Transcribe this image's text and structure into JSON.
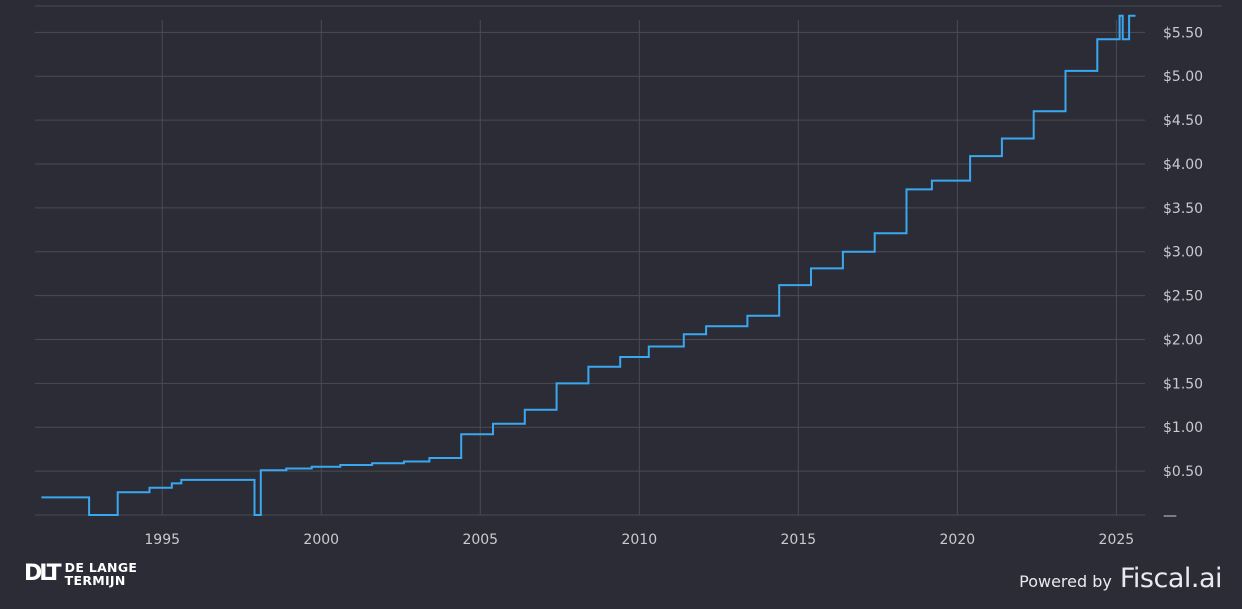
{
  "chart_data": {
    "type": "line",
    "step": true,
    "title": "",
    "xlabel": "",
    "ylabel": "",
    "xlim": [
      1991.0,
      2025.9
    ],
    "ylim": [
      0,
      5.8
    ],
    "x_ticks": [
      1995,
      2000,
      2005,
      2010,
      2015,
      2020,
      2025
    ],
    "x_tick_labels": [
      "1995",
      "2000",
      "2005",
      "2010",
      "2015",
      "2020",
      "2025"
    ],
    "y_ticks": [
      0,
      0.5,
      1.0,
      1.5,
      2.0,
      2.5,
      3.0,
      3.5,
      4.0,
      4.5,
      5.0,
      5.5
    ],
    "y_tick_labels": [
      "—",
      "$0.50",
      "$1.00",
      "$1.50",
      "$2.00",
      "$2.50",
      "$3.00",
      "$3.50",
      "$4.00",
      "$4.50",
      "$5.00",
      "$5.50"
    ],
    "y_axis_position": "right",
    "grid": true,
    "series_color": "#3aa8f0",
    "series": [
      {
        "x": [
          1991.2,
          1992.7,
          1993.6,
          1994.6,
          1995.3,
          1995.6,
          1997.9,
          1998.1,
          1998.9,
          1999.7,
          2000.6,
          2001.6,
          2002.6,
          2003.4,
          2004.4,
          2005.4,
          2006.4,
          2007.4,
          2008.4,
          2009.4,
          2010.3,
          2011.4,
          2012.1,
          2013.4,
          2014.4,
          2015.4,
          2016.4,
          2017.4,
          2018.4,
          2019.2,
          2020.4,
          2021.4,
          2022.4,
          2023.4,
          2024.4,
          2025.1,
          2025.2,
          2025.4,
          2025.6
        ],
        "y": [
          0.2,
          0.0,
          0.26,
          0.31,
          0.36,
          0.4,
          0.0,
          0.51,
          0.53,
          0.55,
          0.57,
          0.59,
          0.61,
          0.65,
          0.92,
          1.04,
          1.2,
          1.5,
          1.69,
          1.8,
          1.92,
          2.06,
          2.15,
          2.27,
          2.62,
          2.81,
          3.0,
          3.21,
          3.71,
          3.81,
          4.09,
          4.29,
          4.6,
          5.06,
          5.42,
          5.69,
          5.42,
          5.69,
          5.69
        ]
      }
    ]
  },
  "branding": {
    "left_mark": "DLT",
    "left_line1": "DE LANGE",
    "left_line2": "TERMIJN",
    "right_prefix": "Powered by",
    "right_name": "Fiscal.ai"
  }
}
